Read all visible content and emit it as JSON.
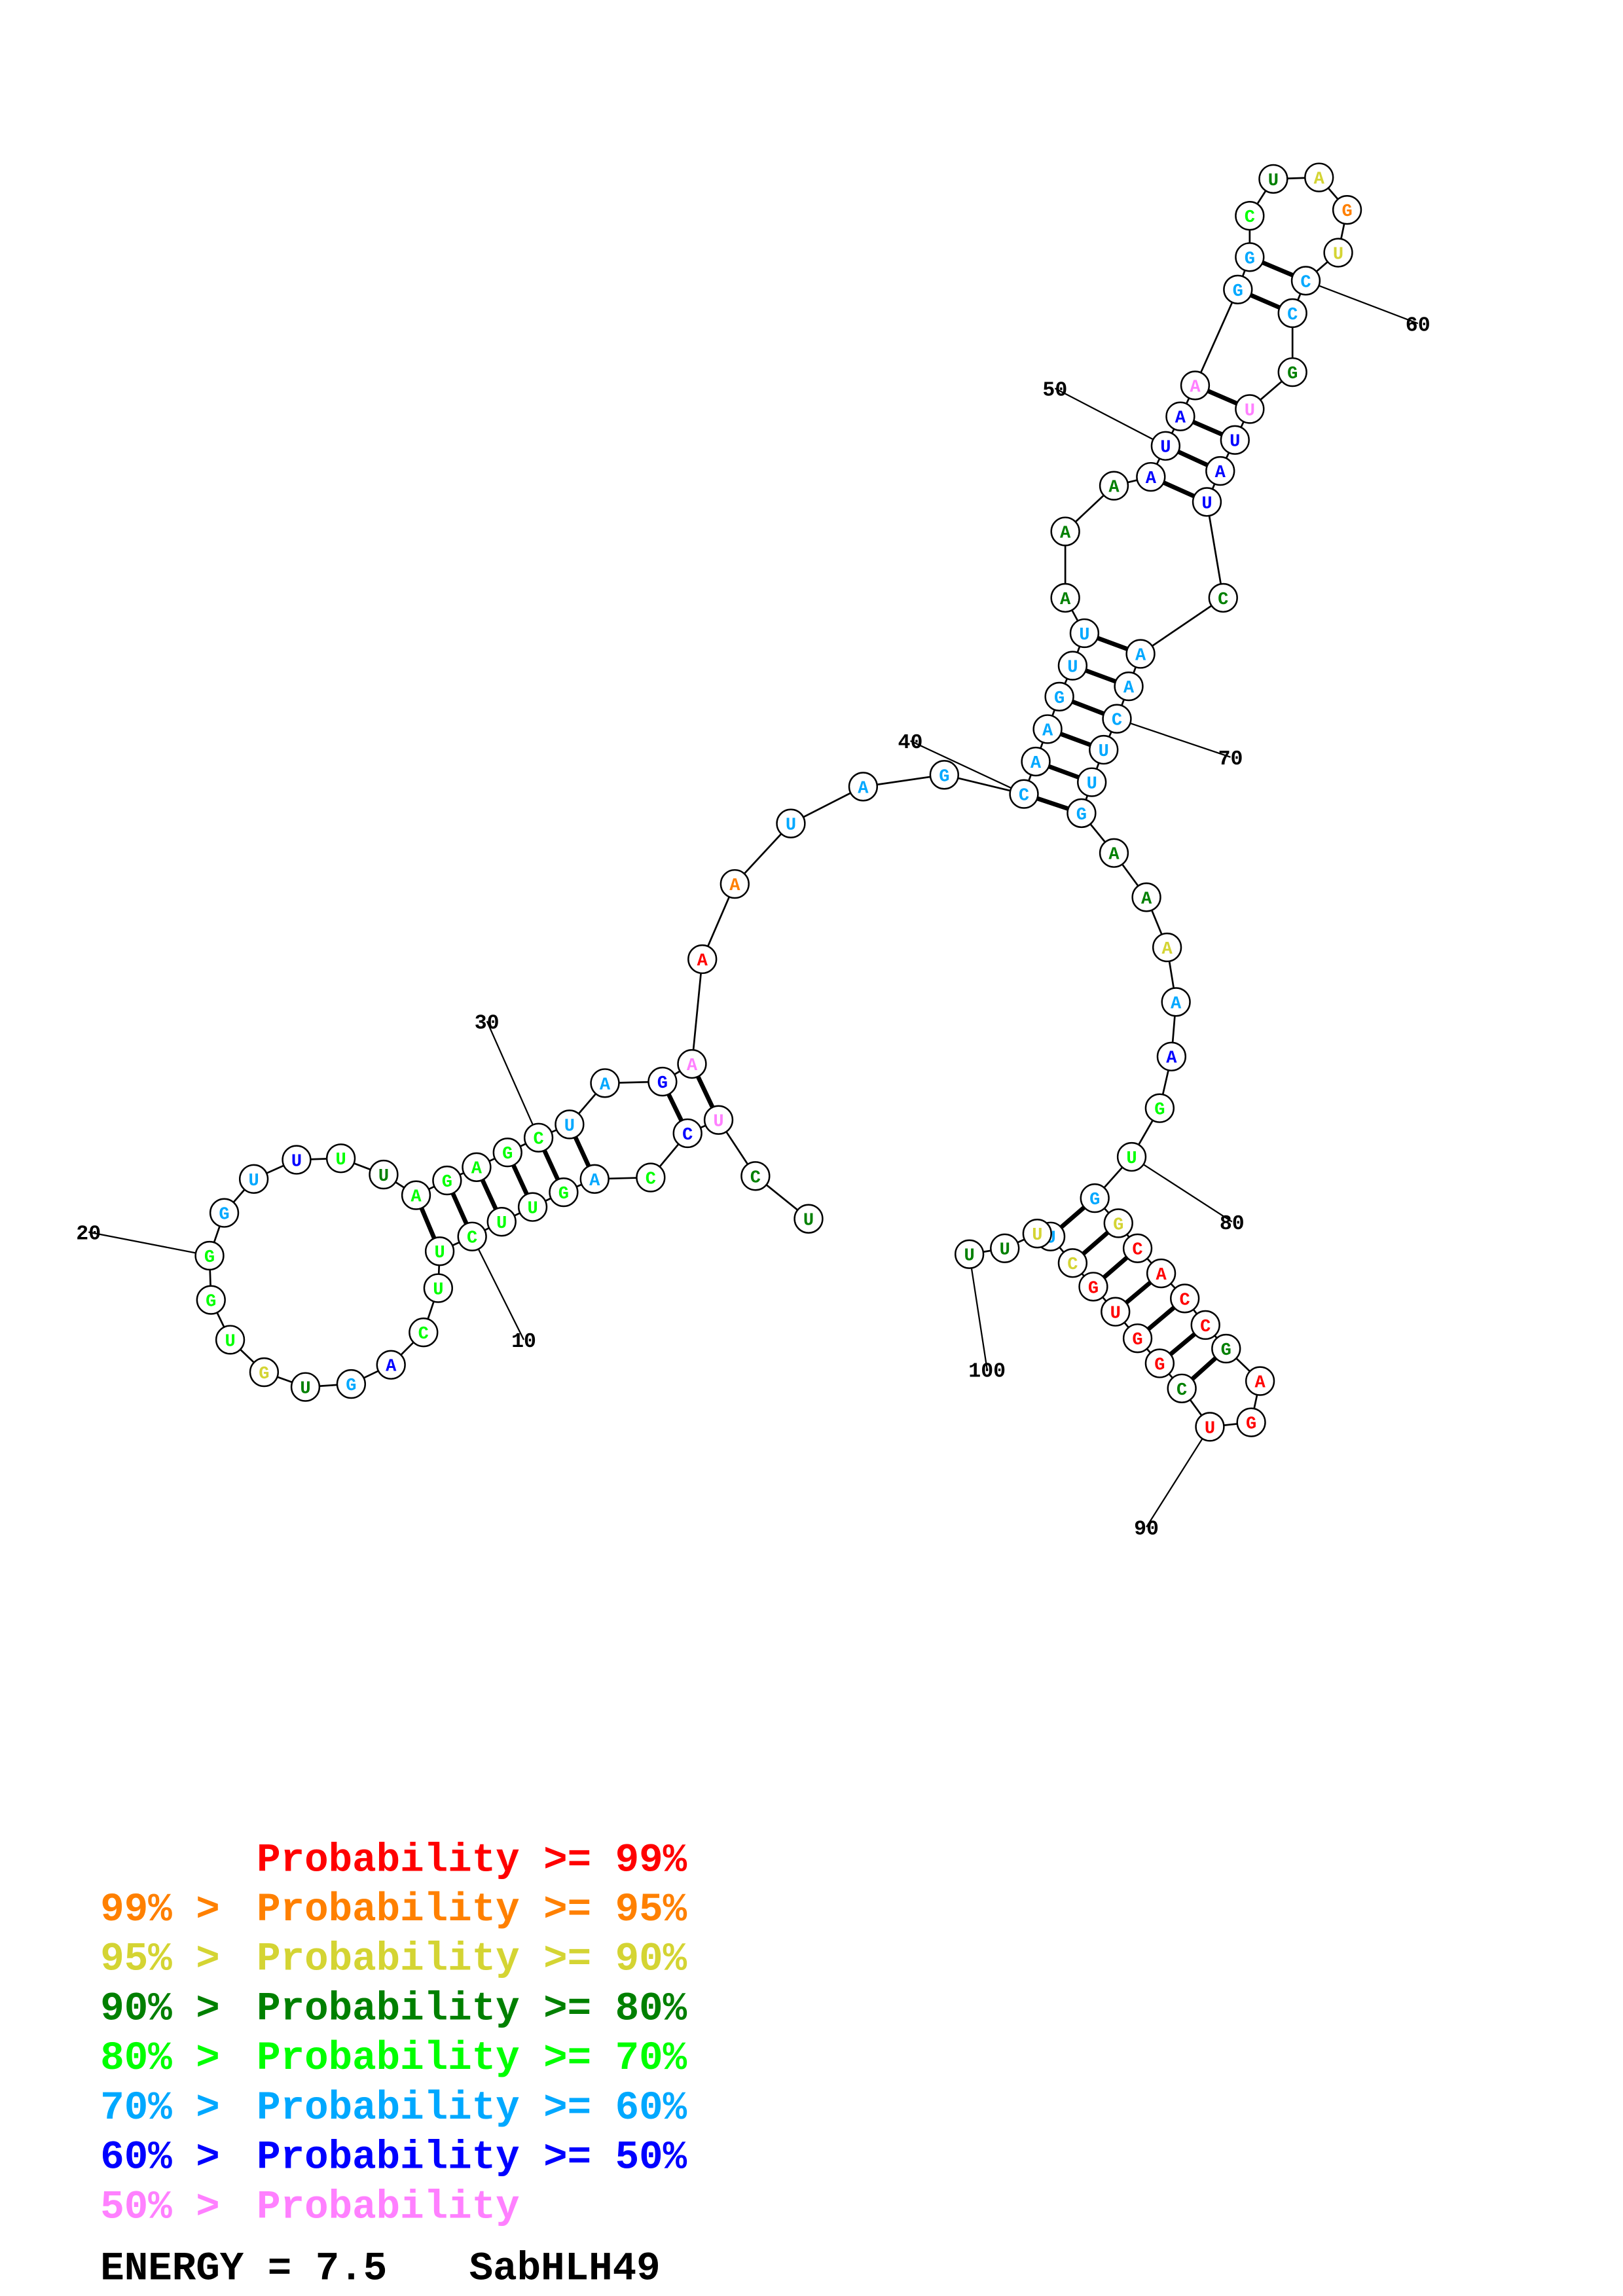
{
  "structure": {
    "sequence": "UCUCCAGUUCUUCAGUGUGGGUUUUAGAGCUAGAAAUAGCAAGUUAAAAUAAGGCUAGUCCGUUAUCAACUUGAAAAAGUGGCACCGAGUCGGUGCUUUU",
    "probability_class": [
      3,
      3,
      7,
      6,
      4,
      5,
      4,
      4,
      4,
      4,
      4,
      4,
      4,
      6,
      5,
      3,
      2,
      4,
      4,
      4,
      5,
      5,
      6,
      4,
      3,
      4,
      4,
      4,
      4,
      4,
      5,
      5,
      6,
      7,
      0,
      1,
      5,
      5,
      5,
      5,
      5,
      5,
      5,
      5,
      5,
      3,
      3,
      3,
      6,
      6,
      6,
      7,
      5,
      5,
      4,
      3,
      2,
      1,
      2,
      5,
      5,
      3,
      7,
      6,
      6,
      6,
      3,
      5,
      5,
      5,
      5,
      5,
      5,
      3,
      3,
      2,
      5,
      6,
      4,
      4,
      5,
      2,
      0,
      0,
      0,
      0,
      3,
      0,
      0,
      0,
      3,
      0,
      0,
      0,
      0,
      2,
      5,
      2,
      3,
      3
    ],
    "pairs": [
      [
        3,
        34
      ],
      [
        4,
        33
      ],
      [
        6,
        31
      ],
      [
        7,
        30
      ],
      [
        8,
        29
      ],
      [
        9,
        28
      ],
      [
        10,
        27
      ],
      [
        11,
        26
      ],
      [
        40,
        73
      ],
      [
        41,
        72
      ],
      [
        42,
        71
      ],
      [
        43,
        70
      ],
      [
        44,
        69
      ],
      [
        45,
        68
      ],
      [
        49,
        66
      ],
      [
        50,
        65
      ],
      [
        51,
        64
      ],
      [
        52,
        63
      ],
      [
        53,
        61
      ],
      [
        54,
        60
      ],
      [
        81,
        97
      ],
      [
        82,
        96
      ],
      [
        83,
        95
      ],
      [
        84,
        94
      ],
      [
        85,
        93
      ],
      [
        86,
        92
      ],
      [
        87,
        91
      ]
    ],
    "position_labels": [
      "10",
      "20",
      "30",
      "40",
      "50",
      "60",
      "70",
      "80",
      "90",
      "100"
    ]
  },
  "legend": {
    "colors": [
      "#ff0000",
      "#ff8000",
      "#d4d433",
      "#008000",
      "#00ff00",
      "#00a8ff",
      "#0000ff",
      "#ff80ff"
    ],
    "items": [
      {
        "prefix": "",
        "label": "Probability >= 99%"
      },
      {
        "prefix": "99% >",
        "label": "Probability >= 95%"
      },
      {
        "prefix": "95% >",
        "label": "Probability >= 90%"
      },
      {
        "prefix": "90% >",
        "label": "Probability >= 80%"
      },
      {
        "prefix": "80% >",
        "label": "Probability >= 70%"
      },
      {
        "prefix": "70% >",
        "label": "Probability >= 60%"
      },
      {
        "prefix": "60% >",
        "label": "Probability >= 50%"
      },
      {
        "prefix": "50% >",
        "label": "Probability"
      }
    ],
    "energy_text": "ENERGY = 7.5",
    "name": "SabHLH49"
  }
}
